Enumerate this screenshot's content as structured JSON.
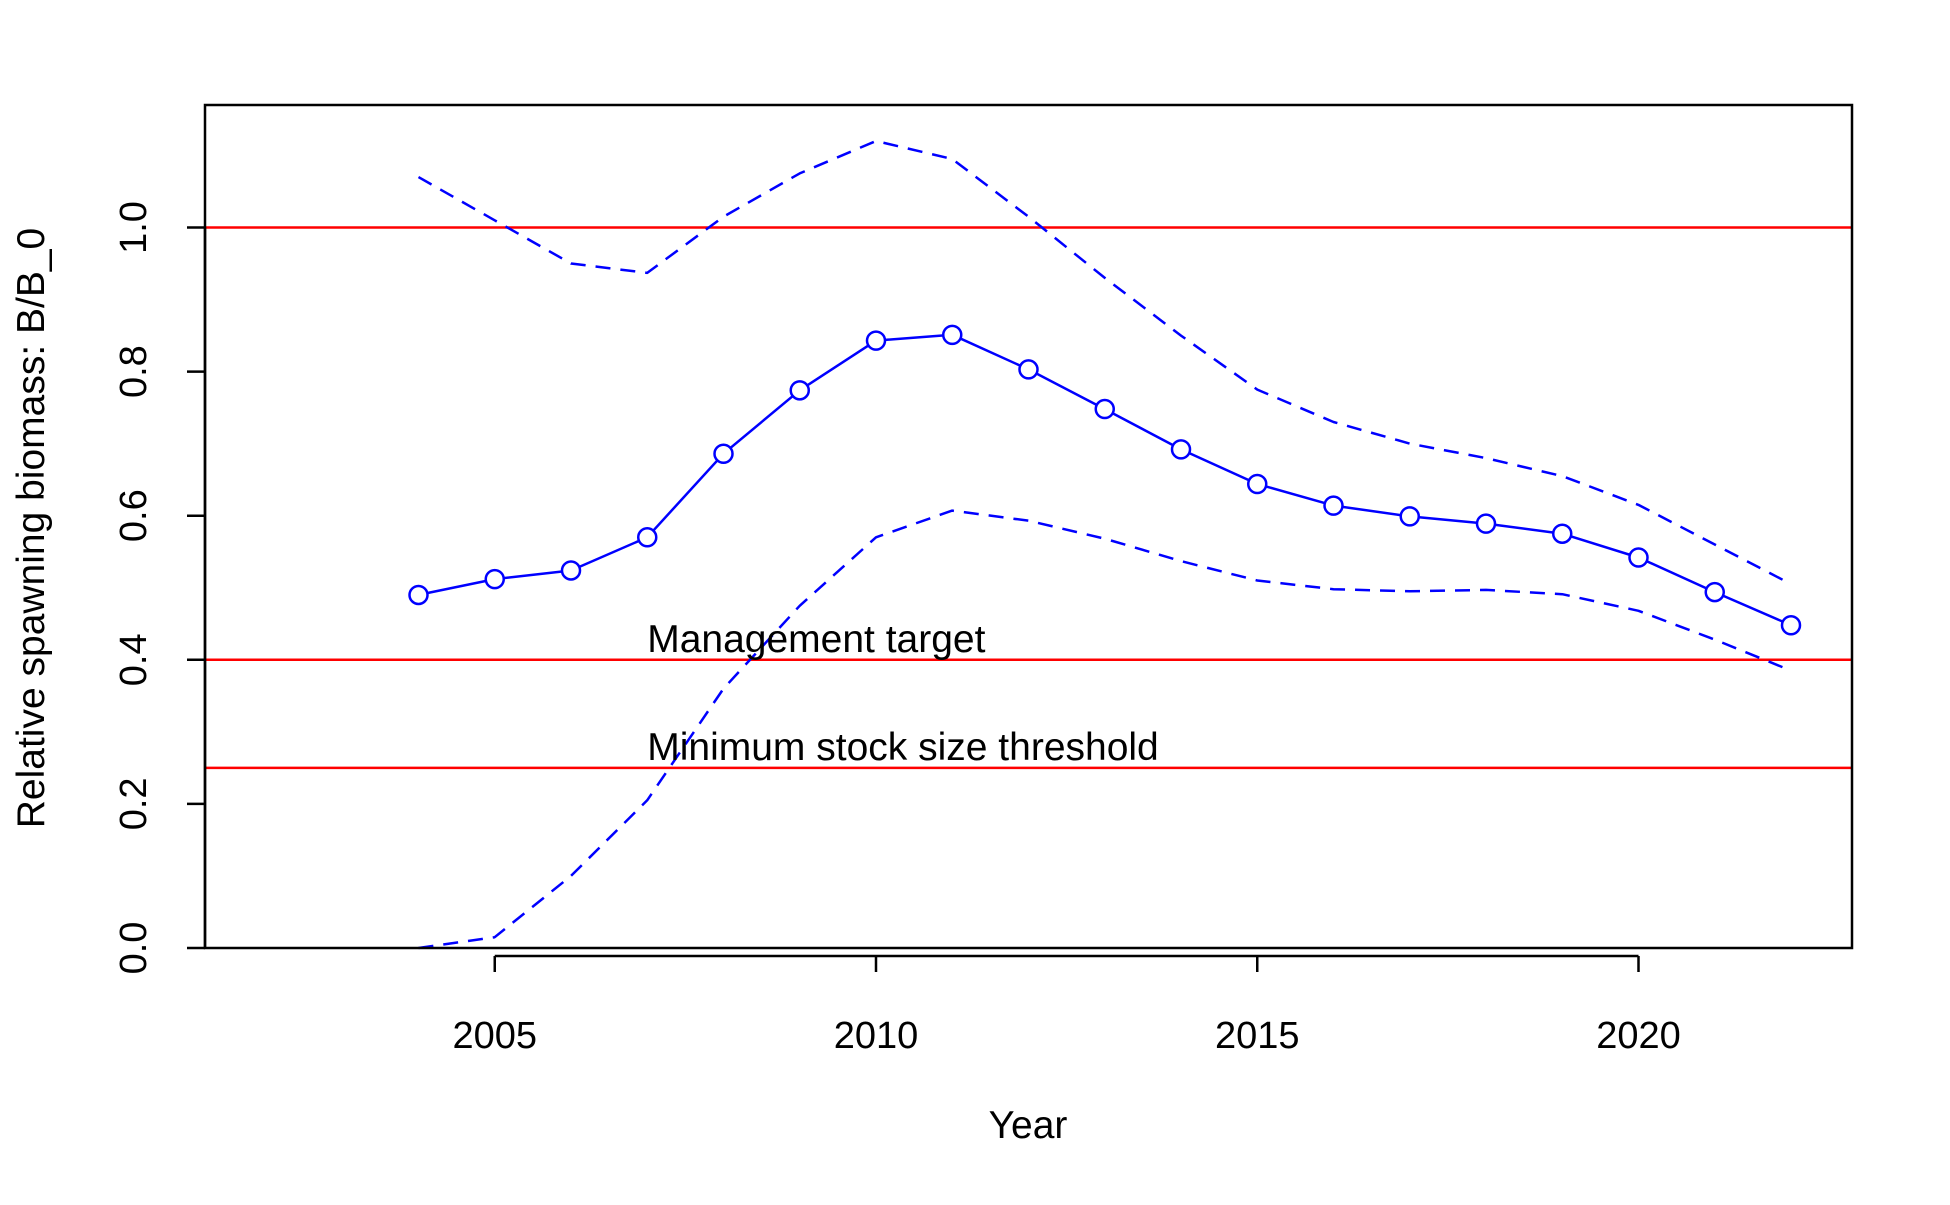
{
  "chart_data": {
    "type": "line",
    "title": "",
    "xlabel": "Year",
    "ylabel": "Relative spawning biomass: B/B_0",
    "xlim": [
      2001.2,
      2022.8
    ],
    "ylim": [
      0.0,
      1.17
    ],
    "x_ticks": [
      2005,
      2010,
      2015,
      2020
    ],
    "x_tick_labels": [
      "2005",
      "2010",
      "2015",
      "2020"
    ],
    "y_ticks": [
      0.0,
      0.2,
      0.4,
      0.6,
      0.8,
      1.0
    ],
    "y_tick_labels": [
      "0.0",
      "0.2",
      "0.4",
      "0.6",
      "0.8",
      "1.0"
    ],
    "grid": false,
    "legend": "none",
    "x": [
      2004,
      2005,
      2006,
      2007,
      2008,
      2009,
      2010,
      2011,
      2012,
      2013,
      2014,
      2015,
      2016,
      2017,
      2018,
      2019,
      2020,
      2021,
      2022
    ],
    "series": [
      {
        "style": "line-with-circle-markers",
        "color": "#0000ff",
        "values": [
          0.49,
          0.512,
          0.524,
          0.57,
          0.686,
          0.774,
          0.843,
          0.851,
          0.803,
          0.748,
          0.692,
          0.644,
          0.614,
          0.599,
          0.589,
          0.575,
          0.542,
          0.494,
          0.448
        ]
      },
      {
        "style": "dashed",
        "color": "#0000ff",
        "values": [
          1.07,
          1.01,
          0.95,
          0.937,
          1.015,
          1.075,
          1.12,
          1.095,
          1.015,
          0.93,
          0.85,
          0.775,
          0.73,
          0.7,
          0.68,
          0.655,
          0.615,
          0.56,
          0.505
        ]
      },
      {
        "style": "dashed",
        "color": "#0000ff",
        "values": [
          0.0,
          0.015,
          0.1,
          0.205,
          0.36,
          0.475,
          0.57,
          0.607,
          0.593,
          0.568,
          0.537,
          0.51,
          0.498,
          0.495,
          0.497,
          0.491,
          0.468,
          0.428,
          0.385
        ]
      }
    ],
    "reference_lines": [
      {
        "y": 1.0,
        "color": "#ff0000"
      },
      {
        "y": 0.4,
        "color": "#ff0000"
      },
      {
        "y": 0.25,
        "color": "#ff0000"
      }
    ],
    "annotations": [
      {
        "text": "Management target",
        "x": 2007,
        "y": 0.4
      },
      {
        "text": "Minimum stock size threshold",
        "x": 2007,
        "y": 0.25
      }
    ]
  }
}
